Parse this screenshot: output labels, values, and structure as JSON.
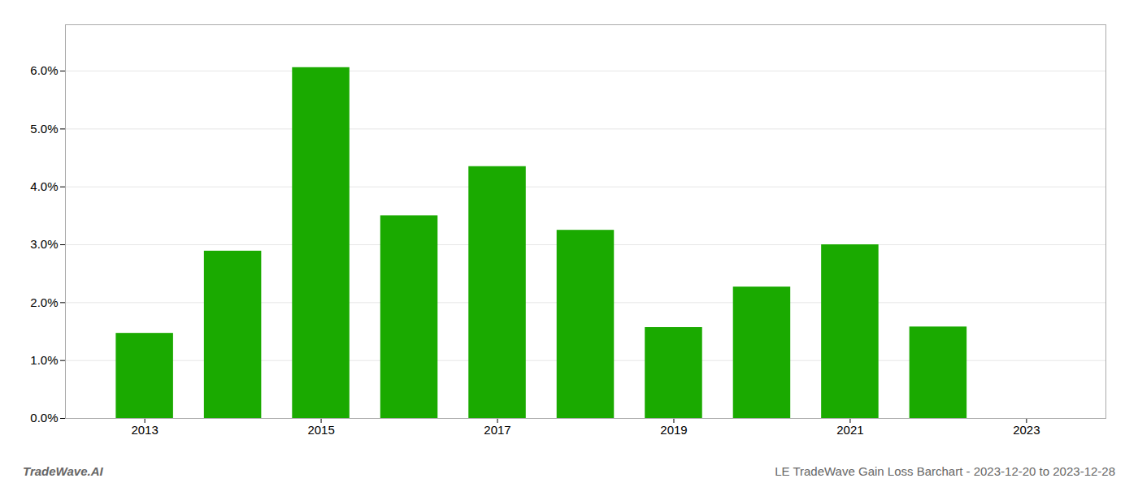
{
  "chart_data": {
    "type": "bar",
    "title": "LE TradeWave Gain Loss Barchart - 2023-12-20 to 2023-12-28",
    "annotations": [
      "TradeWave.AI"
    ],
    "x": [
      2013,
      2014,
      2015,
      2016,
      2017,
      2018,
      2019,
      2020,
      2021,
      2022
    ],
    "values": [
      0.0147,
      0.0289,
      0.0606,
      0.035,
      0.0435,
      0.0325,
      0.0157,
      0.0227,
      0.03,
      0.0158
    ],
    "color": "#1aaa00",
    "xlim": [
      2012.1,
      2023.9
    ],
    "xticks": [
      2013,
      2015,
      2017,
      2019,
      2021,
      2023
    ],
    "ylim": [
      0,
      0.068
    ],
    "yticks": [
      {
        "value": 0.0,
        "label": "0.0%"
      },
      {
        "value": 0.01,
        "label": "1.0%"
      },
      {
        "value": 0.02,
        "label": "2.0%"
      },
      {
        "value": 0.03,
        "label": "3.0%"
      },
      {
        "value": 0.04,
        "label": "4.0%"
      },
      {
        "value": 0.05,
        "label": "5.0%"
      },
      {
        "value": 0.06,
        "label": "6.0%"
      }
    ],
    "grid": "y"
  }
}
